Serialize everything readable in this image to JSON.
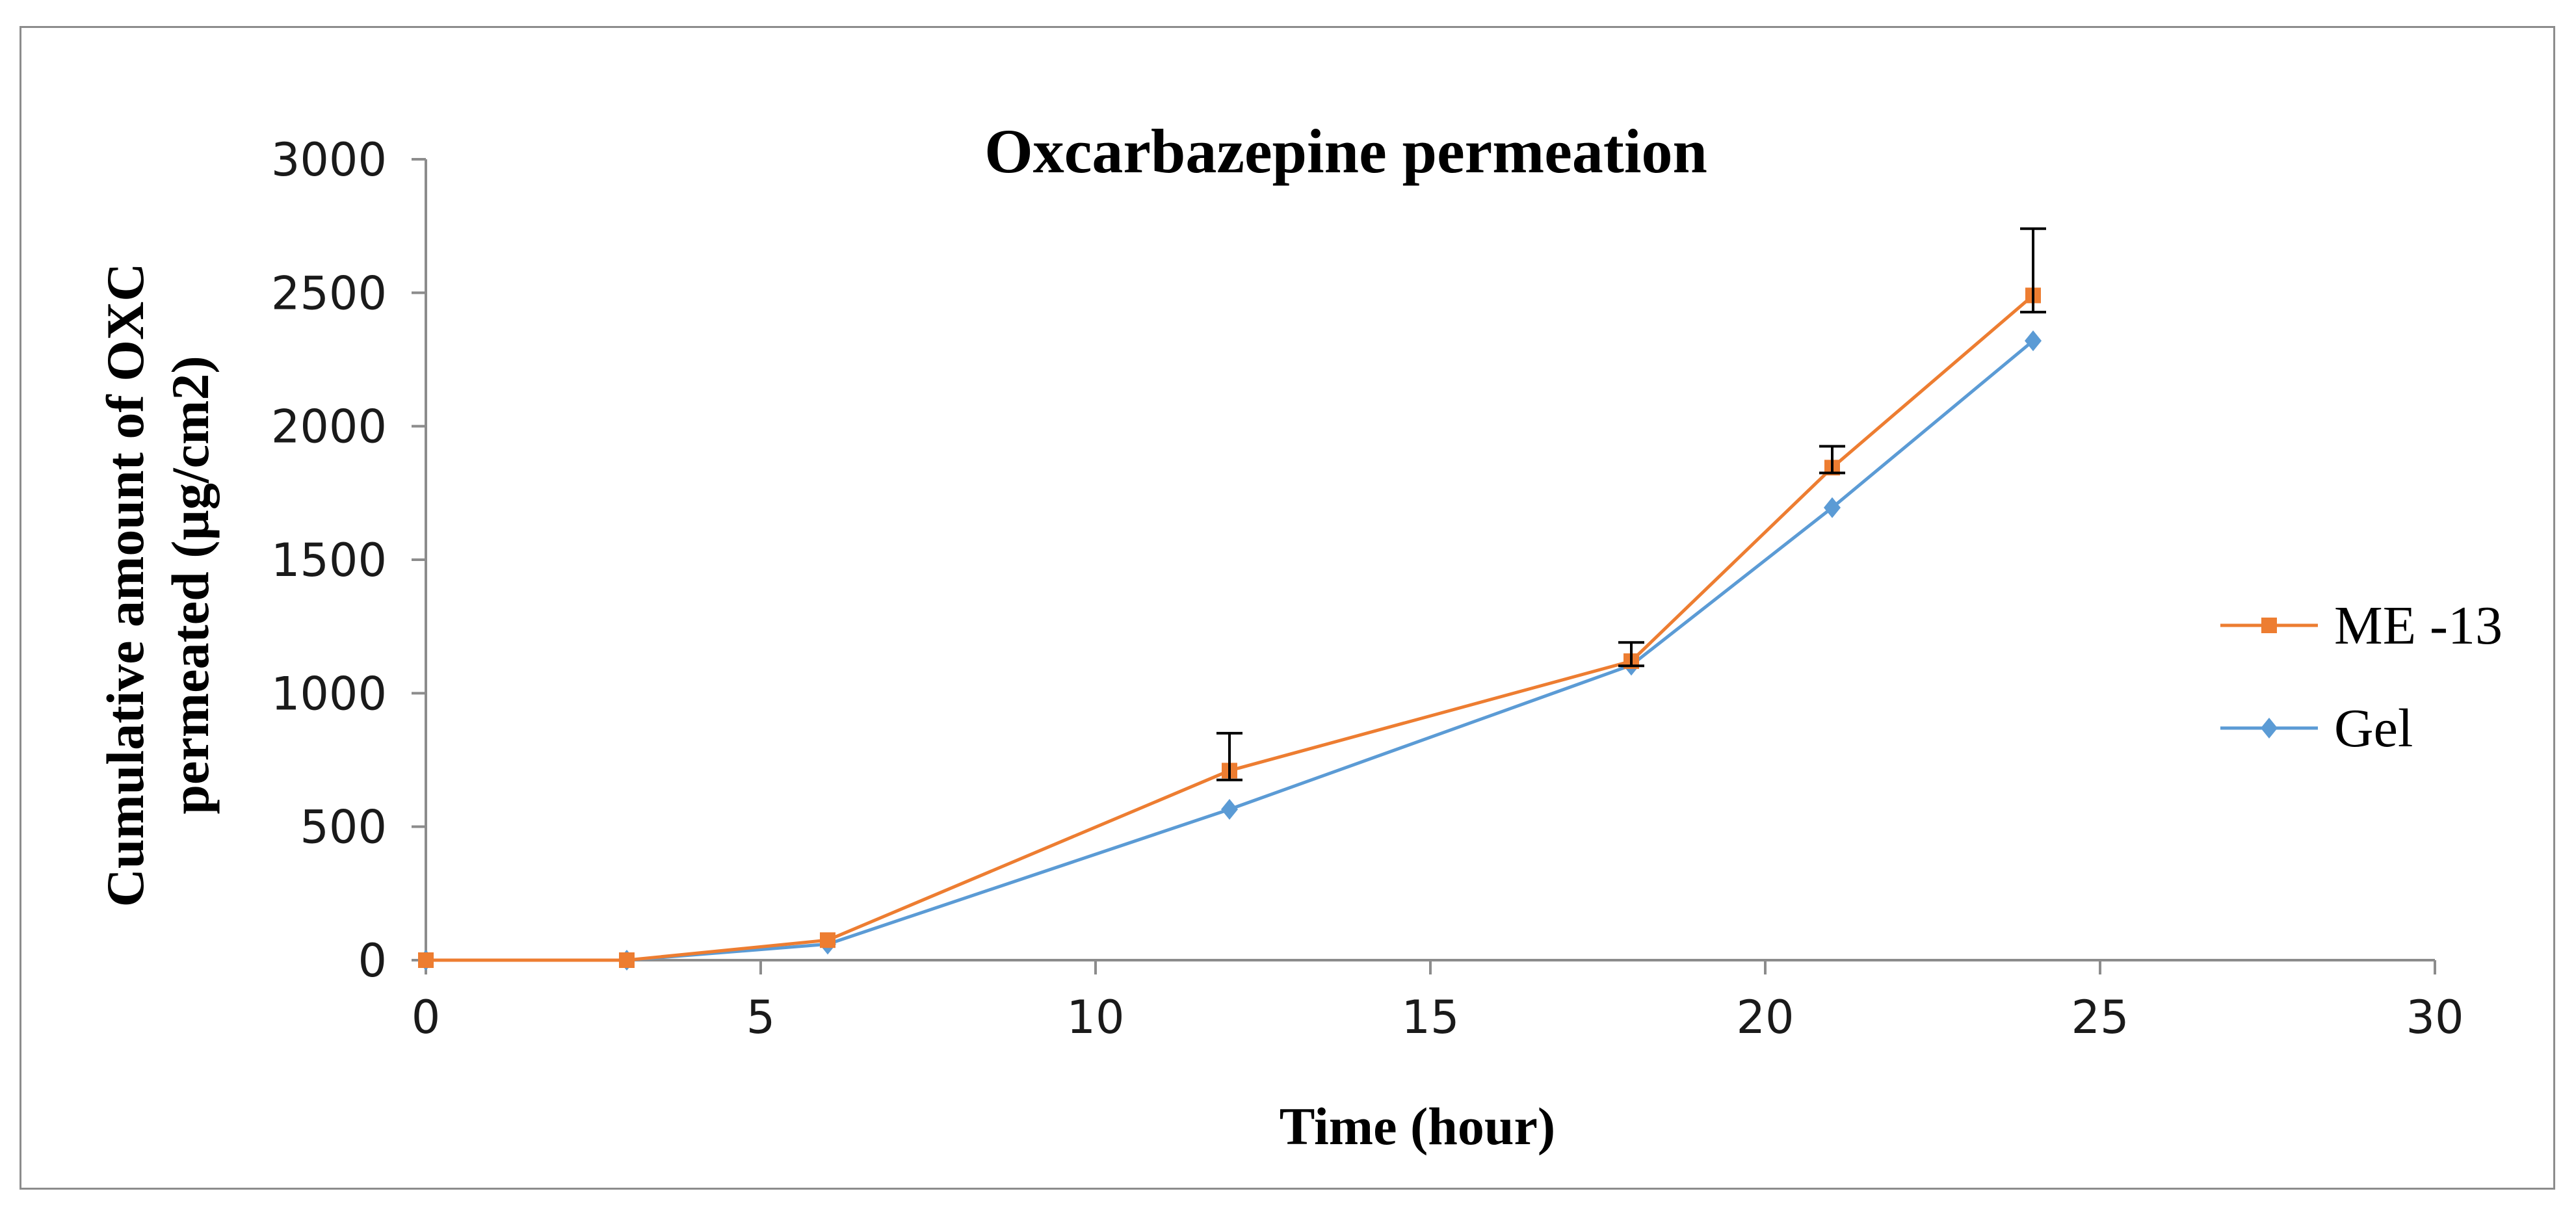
{
  "chart_data": {
    "type": "line",
    "title": "Oxcarbazepine  permeation",
    "xlabel": "Time  (hour)",
    "ylabel_line1": "Cumulative  amount of  OXC",
    "ylabel_line2": "permeated (µg/cm2)",
    "xlim": [
      0,
      30
    ],
    "ylim": [
      0,
      3000
    ],
    "xticks": [
      0,
      5,
      10,
      15,
      20,
      25,
      30
    ],
    "yticks": [
      0,
      500,
      1000,
      1500,
      2000,
      2500,
      3000
    ],
    "grid": false,
    "legend_position": "right",
    "series": [
      {
        "name": "ME -13",
        "color": "#ed7d31",
        "marker": "square",
        "x": [
          0,
          3,
          6,
          12,
          18,
          21,
          24
        ],
        "y": [
          0,
          0,
          75,
          710,
          1120,
          1845,
          2490
        ],
        "err": [
          0,
          0,
          0,
          140,
          70,
          80,
          250
        ]
      },
      {
        "name": "Gel",
        "color": "#5b9bd5",
        "marker": "diamond",
        "x": [
          0,
          3,
          6,
          12,
          18,
          21,
          24
        ],
        "y": [
          0,
          0,
          60,
          565,
          1105,
          1695,
          2320
        ]
      }
    ]
  }
}
